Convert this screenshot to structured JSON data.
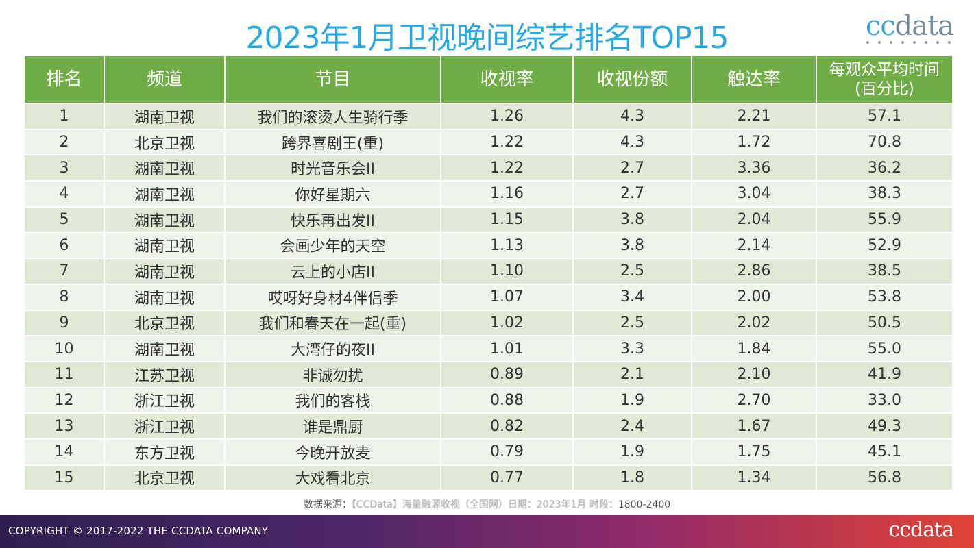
{
  "title": "2023年1月卫视晚间综艺排名TOP15",
  "logo_top": {
    "part1": "cc",
    "part2": "data"
  },
  "table": {
    "headers": [
      "排名",
      "频道",
      "节目",
      "收视率",
      "收视份额",
      "触达率",
      "每观众平均时间\n(百分比)"
    ],
    "header_last_line1": "每观众平均时间",
    "header_last_line2": "(百分比)",
    "rows": [
      [
        "1",
        "湖南卫视",
        "我们的滚烫人生骑行季",
        "1.26",
        "4.3",
        "2.21",
        "57.1"
      ],
      [
        "2",
        "北京卫视",
        "跨界喜剧王(重)",
        "1.22",
        "4.3",
        "1.72",
        "70.8"
      ],
      [
        "3",
        "湖南卫视",
        "时光音乐会II",
        "1.22",
        "2.7",
        "3.36",
        "36.2"
      ],
      [
        "4",
        "湖南卫视",
        "你好星期六",
        "1.16",
        "2.7",
        "3.04",
        "38.3"
      ],
      [
        "5",
        "湖南卫视",
        "快乐再出发II",
        "1.15",
        "3.8",
        "2.04",
        "55.9"
      ],
      [
        "6",
        "湖南卫视",
        "会画少年的天空",
        "1.13",
        "3.8",
        "2.14",
        "52.9"
      ],
      [
        "7",
        "湖南卫视",
        "云上的小店II",
        "1.10",
        "2.5",
        "2.86",
        "38.5"
      ],
      [
        "8",
        "湖南卫视",
        "哎呀好身材4伴侣季",
        "1.07",
        "3.4",
        "2.00",
        "53.8"
      ],
      [
        "9",
        "北京卫视",
        "我们和春天在一起(重)",
        "1.02",
        "2.5",
        "2.02",
        "50.5"
      ],
      [
        "10",
        "湖南卫视",
        "大湾仔的夜II",
        "1.01",
        "3.3",
        "1.84",
        "55.0"
      ],
      [
        "11",
        "江苏卫视",
        "非诚勿扰",
        "0.89",
        "2.1",
        "2.10",
        "41.9"
      ],
      [
        "12",
        "浙江卫视",
        "我们的客栈",
        "0.88",
        "1.9",
        "2.70",
        "33.0"
      ],
      [
        "13",
        "浙江卫视",
        "谁是鼎厨",
        "0.82",
        "2.4",
        "1.67",
        "49.3"
      ],
      [
        "14",
        "东方卫视",
        "今晚开放麦",
        "0.79",
        "1.9",
        "1.75",
        "45.1"
      ],
      [
        "15",
        "北京卫视",
        "大戏看北京",
        "0.77",
        "1.8",
        "1.34",
        "56.8"
      ]
    ]
  },
  "source": {
    "label": "数据来源：",
    "blurred": "【CCData】海量融源收视（全国网）日期：2023年1月 时段：",
    "time": "1800-2400"
  },
  "footer": {
    "copyright": "COPYRIGHT © 2017-2022 THE CCDATA COMPANY",
    "logo": "ccdata"
  },
  "colors": {
    "title": "#29a9e1",
    "header_bg": "#70ad47",
    "row_odd": "#dfe9d5",
    "row_even": "#eff4ea"
  }
}
